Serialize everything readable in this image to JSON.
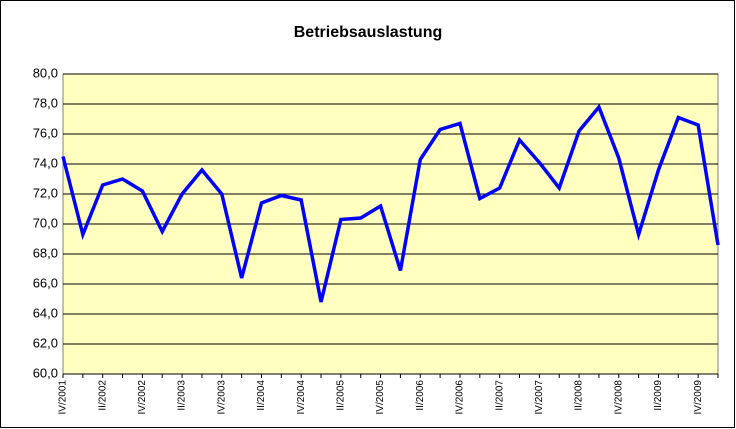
{
  "chart_data": {
    "type": "line",
    "title": "Betriebsauslastung",
    "categories": [
      "IV/2001",
      null,
      "II/2002",
      null,
      "IV/2002",
      null,
      "II/2003",
      null,
      "IV/2003",
      null,
      "II/2004",
      null,
      "IV/2004",
      null,
      "II/2005",
      null,
      "IV/2005",
      null,
      "II/2006",
      null,
      "IV/2006",
      null,
      "II/2007",
      null,
      "IV/2007",
      null,
      "II/2008",
      null,
      "IV/2008",
      null,
      "II/2009",
      null,
      "IV/2009",
      null
    ],
    "series": [
      {
        "name": "Betriebsauslastung",
        "color": "#0000ff",
        "values": [
          74.5,
          69.3,
          72.6,
          73.0,
          72.2,
          69.5,
          72.0,
          73.6,
          72.0,
          66.4,
          71.4,
          71.9,
          71.6,
          64.8,
          70.3,
          70.4,
          71.2,
          66.9,
          74.3,
          76.3,
          76.7,
          71.7,
          72.4,
          75.6,
          74.1,
          72.4,
          76.2,
          77.8,
          74.4,
          69.3,
          73.6,
          77.1,
          76.6,
          68.6
        ]
      }
    ],
    "ylim": [
      60,
      80
    ],
    "yticks": [
      {
        "value": 60,
        "label": "60,0"
      },
      {
        "value": 62,
        "label": "62,0"
      },
      {
        "value": 64,
        "label": "64,0"
      },
      {
        "value": 66,
        "label": "66,0"
      },
      {
        "value": 68,
        "label": "68,0"
      },
      {
        "value": 70,
        "label": "70,0"
      },
      {
        "value": 72,
        "label": "72,0"
      },
      {
        "value": 74,
        "label": "74,0"
      },
      {
        "value": 76,
        "label": "76,0"
      },
      {
        "value": 78,
        "label": "78,0"
      },
      {
        "value": 80,
        "label": "80,0"
      }
    ],
    "grid": true,
    "plot_background": "#ffffc0"
  }
}
